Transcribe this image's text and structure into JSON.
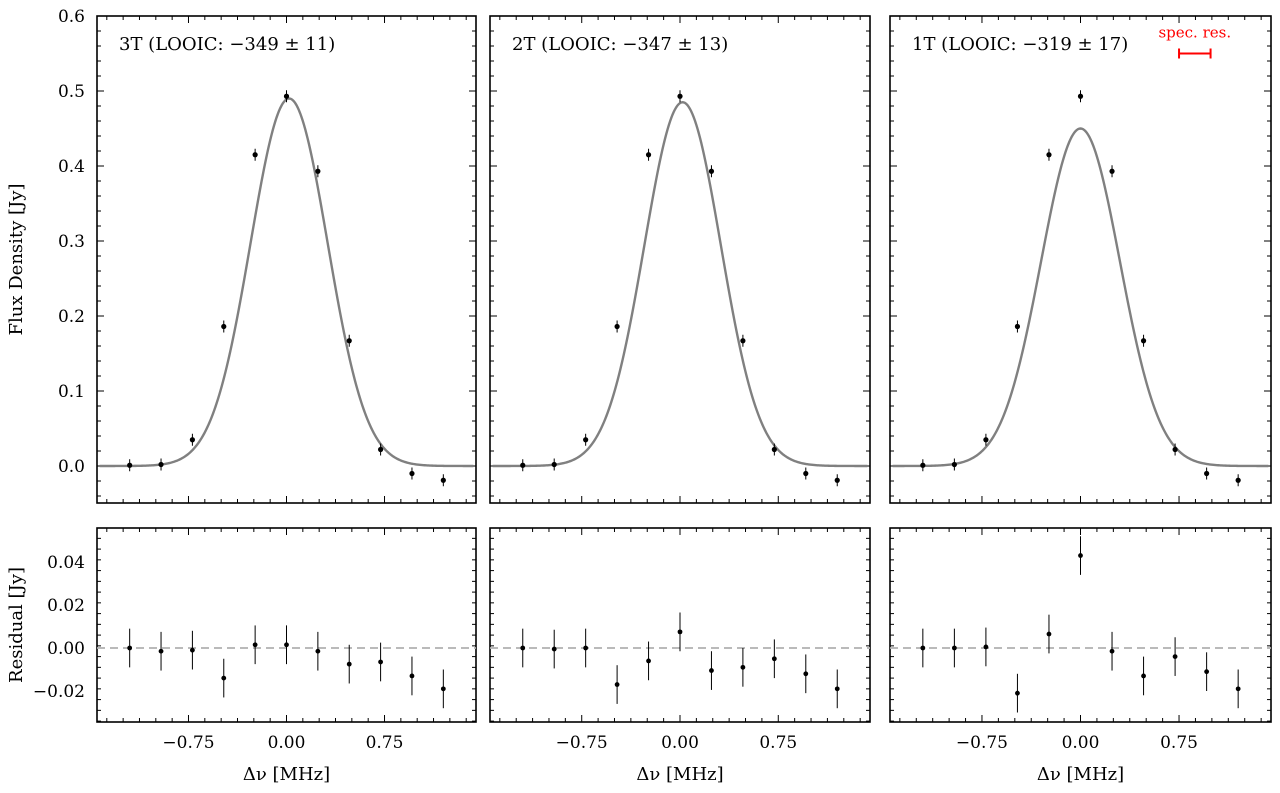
{
  "chart_data": {
    "type": "scatter",
    "description_free": true,
    "shared": {
      "xlabel": "Δν [MHz]",
      "top_ylabel": "Flux Density [Jy]",
      "bottom_ylabel": "Residual [Jy]",
      "x_ticks": [
        -0.75,
        0.0,
        0.75
      ],
      "x_tick_labels": [
        "−0.75",
        "0.00",
        "0.75"
      ],
      "xlim": [
        -1.45,
        1.45
      ],
      "top_ylim": [
        -0.05,
        0.6
      ],
      "top_yticks": [
        0.0,
        0.1,
        0.2,
        0.3,
        0.4,
        0.5,
        0.6
      ],
      "top_ytick_labels": [
        "0.0",
        "0.1",
        "0.2",
        "0.3",
        "0.4",
        "0.5",
        "0.6"
      ],
      "bottom_ylim": [
        -0.035,
        0.055
      ],
      "bottom_yticks": [
        -0.02,
        0.0,
        0.02,
        0.04
      ],
      "bottom_ytick_labels": [
        "−0.02",
        "0.00",
        "0.02",
        "0.04"
      ],
      "colors": {
        "data": "#000000",
        "model": "#808080",
        "zero_line": "#b0b0b0",
        "annotation": "#ff0000"
      },
      "x": [
        -1.2,
        -0.96,
        -0.72,
        -0.48,
        -0.24,
        0.0,
        0.24,
        0.48,
        0.72,
        0.96,
        1.2
      ],
      "flux": [
        0.001,
        0.002,
        0.035,
        0.186,
        0.415,
        0.493,
        0.393,
        0.167,
        0.022,
        -0.01,
        -0.019
      ],
      "flux_err": [
        0.008,
        0.008,
        0.008,
        0.008,
        0.008,
        0.008,
        0.008,
        0.008,
        0.008,
        0.008,
        0.008
      ]
    },
    "panels": [
      {
        "title": "3T (LOOIC: −349 ± 11)",
        "model": {
          "amp": 0.49,
          "center": 0.02,
          "sigma": 0.295
        },
        "residual": [
          0.0,
          -0.0015,
          -0.001,
          -0.014,
          0.0015,
          0.0015,
          -0.0015,
          -0.0075,
          -0.0065,
          -0.013,
          -0.019
        ],
        "residual_err": [
          0.009,
          0.009,
          0.009,
          0.009,
          0.009,
          0.009,
          0.009,
          0.009,
          0.009,
          0.009,
          0.009
        ]
      },
      {
        "title": "2T (LOOIC: −347 ± 13)",
        "model": {
          "amp": 0.485,
          "center": 0.02,
          "sigma": 0.292
        },
        "residual": [
          0.0,
          -0.0005,
          0.0,
          -0.017,
          -0.006,
          0.0075,
          -0.0105,
          -0.009,
          -0.005,
          -0.012,
          -0.019
        ],
        "residual_err": [
          0.009,
          0.009,
          0.009,
          0.009,
          0.009,
          0.009,
          0.009,
          0.009,
          0.009,
          0.009,
          0.009
        ]
      },
      {
        "title": "1T (LOOIC: −319 ± 17)",
        "model": {
          "amp": 0.45,
          "center": 0.0,
          "sigma": 0.3
        },
        "residual": [
          0.0,
          0.0,
          0.0005,
          -0.021,
          0.0065,
          0.043,
          -0.0015,
          -0.013,
          -0.004,
          -0.011,
          -0.019
        ],
        "residual_err": [
          0.009,
          0.009,
          0.009,
          0.009,
          0.009,
          0.009,
          0.009,
          0.009,
          0.009,
          0.009,
          0.009
        ],
        "annotation": {
          "text": "spec. res.",
          "x_start": 0.75,
          "x_end": 0.99,
          "y": 0.55
        }
      }
    ]
  }
}
